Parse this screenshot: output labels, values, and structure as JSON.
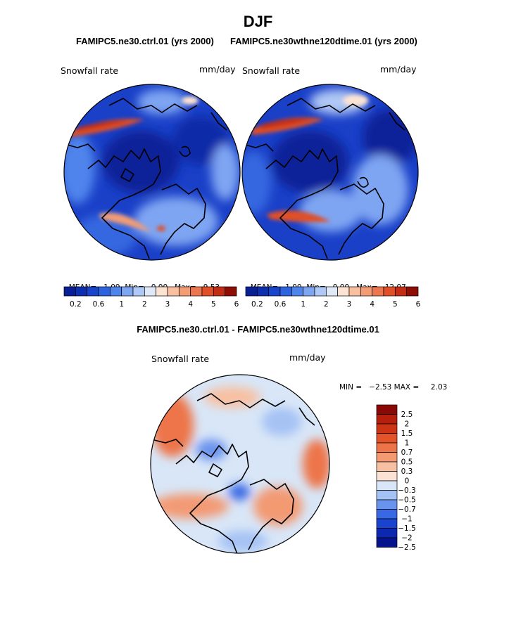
{
  "figure_title": "DJF",
  "colors": {
    "abs_scale": [
      "#081f96",
      "#0d2fb0",
      "#1845cc",
      "#2e63e0",
      "#4f84ec",
      "#7ea5f2",
      "#b0c8f5",
      "#dfe9f7",
      "#fde3d2",
      "#f9c0a0",
      "#f39c76",
      "#ec774f",
      "#e04f28",
      "#c42d15",
      "#8e0e06"
    ],
    "diff_scale": [
      "#05148c",
      "#0c28b0",
      "#1a44d0",
      "#3868e3",
      "#6a93ee",
      "#a5c2f4",
      "#d8e6f7",
      "#fbe2d3",
      "#f8c0a2",
      "#f39a73",
      "#ed7448",
      "#e5532a",
      "#cd3414",
      "#b51f0b",
      "#8a0906"
    ]
  },
  "panels": [
    {
      "subtitle": "FAMIPC5.ne30.ctrl.01 (yrs 2000)",
      "left_label": "Snowfall rate",
      "right_label": "mm/day",
      "stats": {
        "mean_label": "MEAN=",
        "mean": "1.09",
        "min_label": "Min=",
        "min": "0.00",
        "max_label": "Max=",
        "max": "9.53"
      },
      "colorbar_ticks": [
        "0.2",
        "0.6",
        "1",
        "2",
        "3",
        "4",
        "5",
        "6"
      ]
    },
    {
      "subtitle": "FAMIPC5.ne30wthne120dtime.01 (yrs 2000)",
      "left_label": "Snowfall rate",
      "right_label": "mm/day",
      "stats": {
        "mean_label": "MEAN=",
        "mean": "1.00",
        "min_label": "Min=",
        "min": "0.00",
        "max_label": "Max=",
        "max": "12.07"
      },
      "colorbar_ticks": [
        "0.2",
        "0.6",
        "1",
        "2",
        "3",
        "4",
        "5",
        "6"
      ]
    }
  ],
  "difference": {
    "subtitle": "FAMIPC5.ne30.ctrl.01 - FAMIPC5.ne30wthne120dtime.01",
    "left_label": "Snowfall rate",
    "right_label": "mm/day",
    "min_text": "MIN =   −2.53 MAX =     2.03",
    "colorbar_ticks": [
      "2.5",
      "2",
      "1.5",
      "1",
      "0.7",
      "0.5",
      "0.3",
      "0",
      "−0.3",
      "−0.5",
      "−0.7",
      "−1",
      "−1.5",
      "−2",
      "−2.5"
    ]
  },
  "chart_data": [
    {
      "type": "heatmap",
      "projection": "north polar stereographic",
      "title": "FAMIPC5.ne30.ctrl.01 (yrs 2000)",
      "variable": "Snowfall rate",
      "units": "mm/day",
      "mean": 1.09,
      "min": 0.0,
      "max": 9.53,
      "color_levels": [
        0.2,
        0.4,
        0.6,
        0.8,
        1,
        1.5,
        2,
        2.5,
        3,
        3.5,
        4,
        4.5,
        5,
        5.5,
        6
      ]
    },
    {
      "type": "heatmap",
      "projection": "north polar stereographic",
      "title": "FAMIPC5.ne30wthne120dtime.01 (yrs 2000)",
      "variable": "Snowfall rate",
      "units": "mm/day",
      "mean": 1.0,
      "min": 0.0,
      "max": 12.07,
      "color_levels": [
        0.2,
        0.4,
        0.6,
        0.8,
        1,
        1.5,
        2,
        2.5,
        3,
        3.5,
        4,
        4.5,
        5,
        5.5,
        6
      ]
    },
    {
      "type": "heatmap",
      "projection": "north polar stereographic",
      "title": "FAMIPC5.ne30.ctrl.01 - FAMIPC5.ne30wthne120dtime.01",
      "variable": "Snowfall rate",
      "units": "mm/day",
      "min": -2.53,
      "max": 2.03,
      "color_levels": [
        -2.5,
        -2,
        -1.5,
        -1,
        -0.7,
        -0.5,
        -0.3,
        0,
        0.3,
        0.5,
        0.7,
        1,
        1.5,
        2,
        2.5
      ]
    }
  ]
}
